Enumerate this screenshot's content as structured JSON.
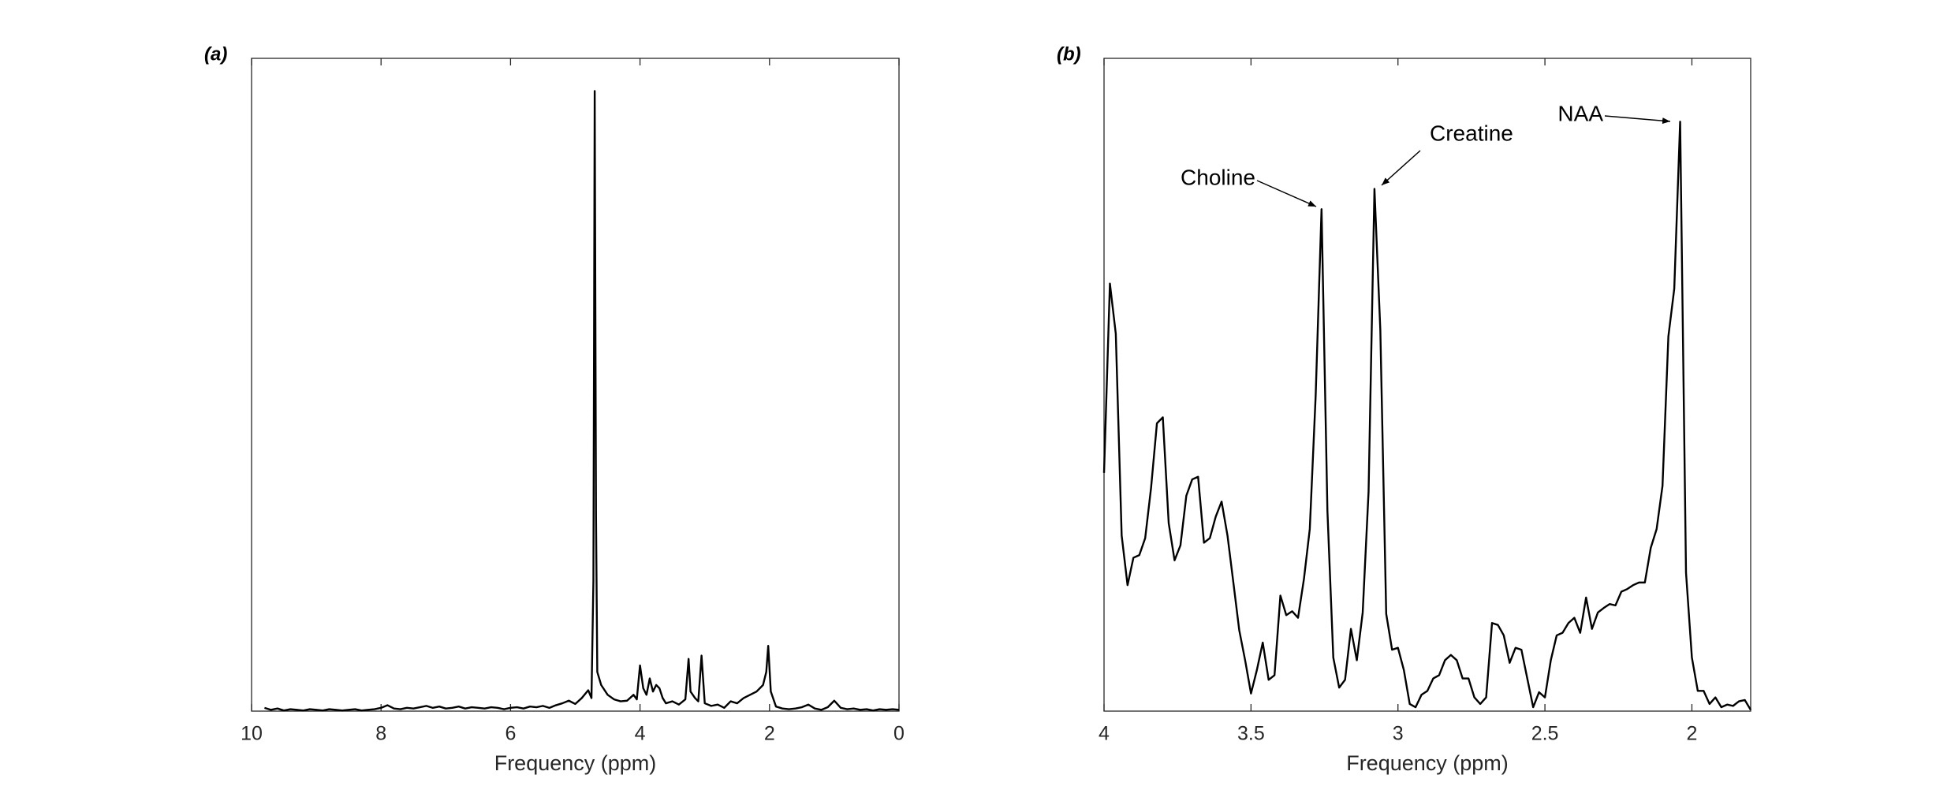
{
  "chart_data": [
    {
      "type": "line",
      "panel_label": "(a)",
      "xlabel": "Frequency (ppm)",
      "color": "#000000",
      "xlim": [
        10,
        0
      ],
      "ylim": [
        0,
        100
      ],
      "xticks": [
        10,
        8,
        6,
        4,
        2,
        0
      ],
      "x": [
        9.8,
        9.7,
        9.6,
        9.5,
        9.4,
        9.3,
        9.2,
        9.1,
        9.0,
        8.9,
        8.8,
        8.7,
        8.6,
        8.5,
        8.4,
        8.3,
        8.2,
        8.1,
        8.0,
        7.9,
        7.8,
        7.7,
        7.6,
        7.5,
        7.4,
        7.3,
        7.2,
        7.1,
        7.0,
        6.9,
        6.8,
        6.7,
        6.6,
        6.5,
        6.4,
        6.3,
        6.2,
        6.1,
        6.0,
        5.9,
        5.8,
        5.7,
        5.6,
        5.5,
        5.4,
        5.3,
        5.2,
        5.1,
        5.0,
        4.9,
        4.8,
        4.75,
        4.72,
        4.7,
        4.68,
        4.66,
        4.6,
        4.5,
        4.4,
        4.3,
        4.2,
        4.1,
        4.05,
        4.0,
        3.95,
        3.9,
        3.85,
        3.8,
        3.75,
        3.7,
        3.65,
        3.6,
        3.5,
        3.4,
        3.3,
        3.25,
        3.22,
        3.15,
        3.1,
        3.05,
        3.0,
        2.9,
        2.8,
        2.7,
        2.6,
        2.5,
        2.4,
        2.3,
        2.2,
        2.1,
        2.05,
        2.02,
        1.98,
        1.9,
        1.8,
        1.7,
        1.6,
        1.5,
        1.4,
        1.3,
        1.2,
        1.1,
        1.0,
        0.9,
        0.8,
        0.7,
        0.6,
        0.5,
        0.4,
        0.3,
        0.2,
        0.1,
        0.0
      ],
      "values": [
        0.5,
        0.2,
        0.4,
        0.1,
        0.3,
        0.2,
        0.1,
        0.3,
        0.2,
        0.1,
        0.3,
        0.2,
        0.1,
        0.2,
        0.3,
        0.1,
        0.2,
        0.3,
        0.5,
        0.9,
        0.4,
        0.3,
        0.5,
        0.4,
        0.6,
        0.8,
        0.5,
        0.7,
        0.4,
        0.5,
        0.7,
        0.4,
        0.6,
        0.5,
        0.4,
        0.6,
        0.5,
        0.3,
        0.5,
        0.6,
        0.4,
        0.7,
        0.6,
        0.8,
        0.5,
        0.9,
        1.2,
        1.6,
        1.1,
        2.0,
        3.2,
        2.0,
        20,
        95,
        30,
        6,
        4.0,
        2.5,
        1.8,
        1.5,
        1.6,
        2.5,
        1.8,
        7.0,
        3.5,
        2.5,
        5.0,
        3.0,
        4.0,
        3.5,
        2.0,
        1.2,
        1.5,
        1.0,
        1.8,
        8.0,
        3.0,
        2.0,
        1.5,
        8.5,
        1.2,
        0.8,
        1.0,
        0.5,
        1.5,
        1.2,
        2.0,
        2.5,
        3.0,
        4.0,
        6.0,
        10.0,
        3.0,
        0.7,
        0.4,
        0.3,
        0.4,
        0.6,
        1.0,
        0.4,
        0.2,
        0.6,
        1.6,
        0.5,
        0.3,
        0.4,
        0.2,
        0.3,
        0.1,
        0.3,
        0.2,
        0.3,
        0.2
      ]
    },
    {
      "type": "line",
      "panel_label": "(b)",
      "xlabel": "Frequency (ppm)",
      "color": "#000000",
      "xlim": [
        4,
        1.8
      ],
      "ylim": [
        0,
        100
      ],
      "xticks": [
        4,
        3.5,
        3,
        2.5,
        2
      ],
      "annotations": [
        "Choline",
        "Creatine",
        "NAA"
      ],
      "x": [
        4.0,
        3.98,
        3.96,
        3.94,
        3.92,
        3.9,
        3.88,
        3.86,
        3.84,
        3.82,
        3.8,
        3.78,
        3.76,
        3.74,
        3.72,
        3.7,
        3.68,
        3.66,
        3.64,
        3.62,
        3.6,
        3.58,
        3.56,
        3.54,
        3.52,
        3.5,
        3.48,
        3.46,
        3.44,
        3.42,
        3.4,
        3.38,
        3.36,
        3.34,
        3.32,
        3.3,
        3.28,
        3.26,
        3.24,
        3.22,
        3.2,
        3.18,
        3.16,
        3.14,
        3.12,
        3.1,
        3.08,
        3.06,
        3.04,
        3.02,
        3.0,
        2.98,
        2.96,
        2.94,
        2.92,
        2.9,
        2.88,
        2.86,
        2.84,
        2.82,
        2.8,
        2.78,
        2.76,
        2.74,
        2.72,
        2.7,
        2.68,
        2.66,
        2.64,
        2.62,
        2.6,
        2.58,
        2.56,
        2.54,
        2.52,
        2.5,
        2.48,
        2.46,
        2.44,
        2.42,
        2.4,
        2.38,
        2.36,
        2.34,
        2.32,
        2.3,
        2.28,
        2.26,
        2.24,
        2.22,
        2.2,
        2.18,
        2.16,
        2.14,
        2.12,
        2.1,
        2.08,
        2.06,
        2.04,
        2.02,
        2.0,
        1.98,
        1.96,
        1.94,
        1.92,
        1.9,
        1.88,
        1.86,
        1.84,
        1.82,
        1.8
      ],
      "values": [
        36.5,
        65.5,
        57.8,
        26.9,
        19.3,
        23.5,
        23.9,
        26.5,
        34.2,
        44.1,
        45.0,
        28.8,
        23.1,
        25.4,
        33.0,
        35.5,
        35.9,
        25.8,
        26.5,
        29.8,
        32.1,
        26.9,
        19.7,
        12.4,
        7.8,
        2.7,
        6.3,
        10.5,
        4.8,
        5.5,
        17.7,
        14.7,
        15.3,
        14.3,
        20.2,
        27.9,
        48.3,
        76.9,
        30.7,
        8.2,
        3.6,
        4.8,
        12.6,
        7.8,
        15.1,
        33.6,
        80.0,
        58.4,
        14.9,
        9.4,
        9.7,
        6.3,
        1.1,
        0.6,
        2.5,
        3.1,
        5.0,
        5.5,
        7.8,
        8.6,
        7.8,
        5.0,
        5.0,
        2.1,
        1.1,
        2.1,
        13.5,
        13.2,
        11.6,
        7.4,
        9.7,
        9.4,
        5.0,
        0.6,
        2.9,
        2.1,
        7.8,
        11.6,
        12.0,
        13.5,
        14.3,
        12.0,
        17.4,
        12.6,
        15.1,
        15.8,
        16.4,
        16.2,
        18.3,
        18.7,
        19.3,
        19.7,
        19.7,
        25.0,
        27.9,
        34.5,
        57.4,
        64.7,
        90.3,
        21.2,
        8.2,
        3.1,
        3.1,
        1.1,
        2.1,
        0.6,
        1.0,
        0.8,
        1.5,
        1.7,
        0.2
      ]
    }
  ]
}
